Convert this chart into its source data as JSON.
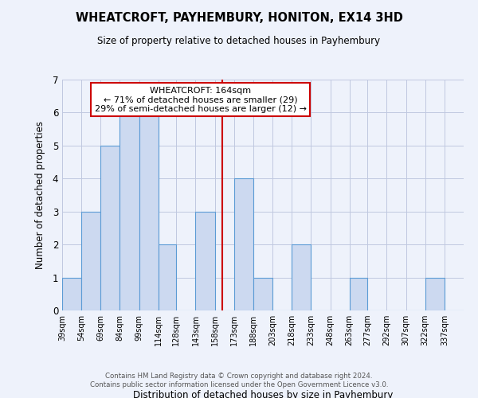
{
  "title": "WHEATCROFT, PAYHEMBURY, HONITON, EX14 3HD",
  "subtitle": "Size of property relative to detached houses in Payhembury",
  "xlabel": "Distribution of detached houses by size in Payhembury",
  "ylabel": "Number of detached properties",
  "bin_labels": [
    "39sqm",
    "54sqm",
    "69sqm",
    "84sqm",
    "99sqm",
    "114sqm",
    "128sqm",
    "143sqm",
    "158sqm",
    "173sqm",
    "188sqm",
    "203sqm",
    "218sqm",
    "233sqm",
    "248sqm",
    "263sqm",
    "277sqm",
    "292sqm",
    "307sqm",
    "322sqm",
    "337sqm"
  ],
  "bin_edges": [
    39,
    54,
    69,
    84,
    99,
    114,
    128,
    143,
    158,
    173,
    188,
    203,
    218,
    233,
    248,
    263,
    277,
    292,
    307,
    322,
    337,
    352
  ],
  "counts": [
    1,
    3,
    5,
    6,
    6,
    2,
    0,
    3,
    0,
    4,
    1,
    0,
    2,
    0,
    0,
    1,
    0,
    0,
    0,
    1,
    0
  ],
  "bar_color": "#ccd9f0",
  "bar_edge_color": "#5b9bd5",
  "vline_x": 164,
  "vline_color": "#cc0000",
  "annotation_title": "WHEATCROFT: 164sqm",
  "annotation_line1": "← 71% of detached houses are smaller (29)",
  "annotation_line2": "29% of semi-detached houses are larger (12) →",
  "annotation_box_color": "#ffffff",
  "annotation_box_edge": "#cc0000",
  "ylim": [
    0,
    7
  ],
  "yticks": [
    0,
    1,
    2,
    3,
    4,
    5,
    6,
    7
  ],
  "footer1": "Contains HM Land Registry data © Crown copyright and database right 2024.",
  "footer2": "Contains public sector information licensed under the Open Government Licence v3.0.",
  "background_color": "#eef2fb",
  "grid_color": "#c0c8e0"
}
